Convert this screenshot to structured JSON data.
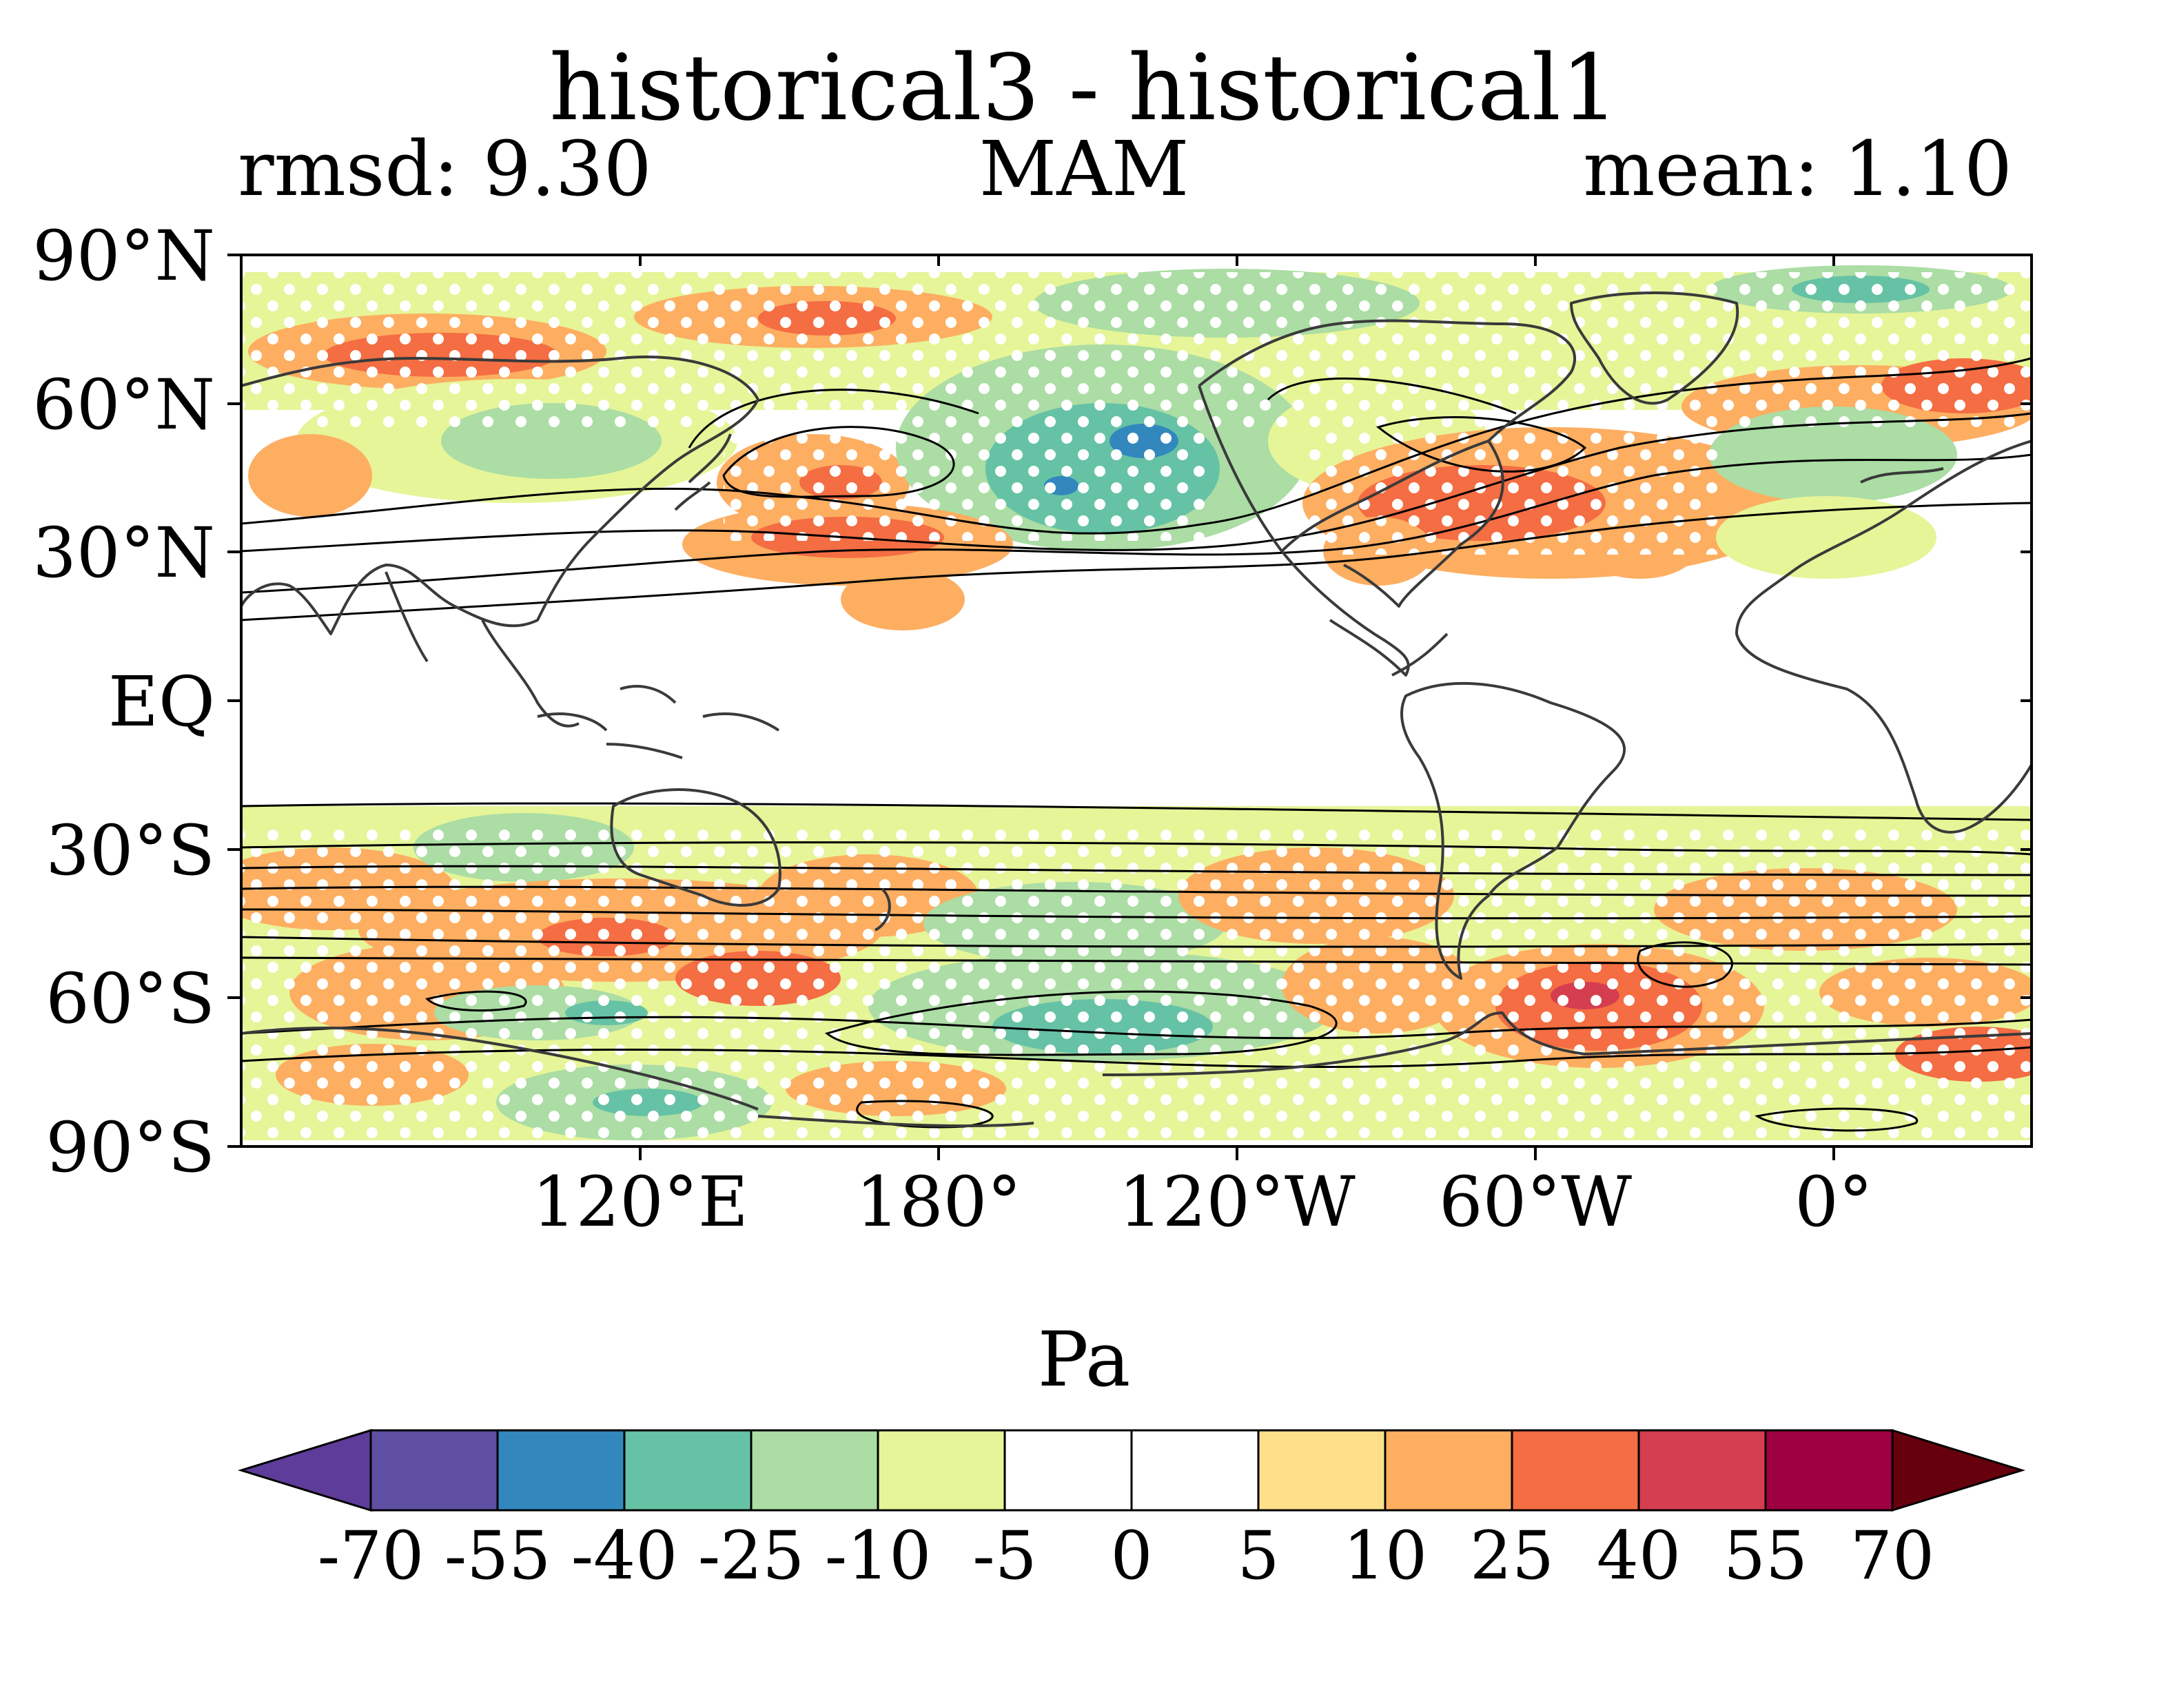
{
  "title": "historical3 - historical1",
  "stats": {
    "rmsd": "rmsd: 9.30",
    "season": "MAM",
    "mean": "mean: 1.10"
  },
  "map": {
    "projection": "cylindrical equidistant, centered 180°",
    "lat_ticks": [
      "90°N",
      "60°N",
      "30°N",
      "EQ",
      "30°S",
      "60°S",
      "90°S"
    ],
    "lon_ticks": [
      "120°E",
      "180°",
      "120°W",
      "60°W",
      "0°"
    ],
    "features": [
      {
        "name": "north-pacific-negative-anomaly",
        "value": -40
      },
      {
        "name": "north-pacific-subtropical-positive-anomaly",
        "value": 25
      },
      {
        "name": "north-atlantic-positive-anomaly",
        "value": 40
      },
      {
        "name": "south-atlantic-southern-ocean-positive-anomaly",
        "value": 55
      },
      {
        "name": "southern-ocean-pacific-negative-anomaly",
        "value": -25
      }
    ]
  },
  "colorbar": {
    "units": "Pa",
    "levels": [
      "-70",
      "-55",
      "-40",
      "-25",
      "-10",
      "-5",
      "0",
      "5",
      "10",
      "25",
      "40",
      "55",
      "70"
    ],
    "colors": [
      "#5e3c99",
      "#5e4fa2",
      "#3288bd",
      "#66c2a5",
      "#abdda4",
      "#e6f598",
      "#ffffff",
      "#ffffff",
      "#fee08b",
      "#fdae61",
      "#f46d43",
      "#d53e4f",
      "#9e0142",
      "#67000d"
    ]
  }
}
